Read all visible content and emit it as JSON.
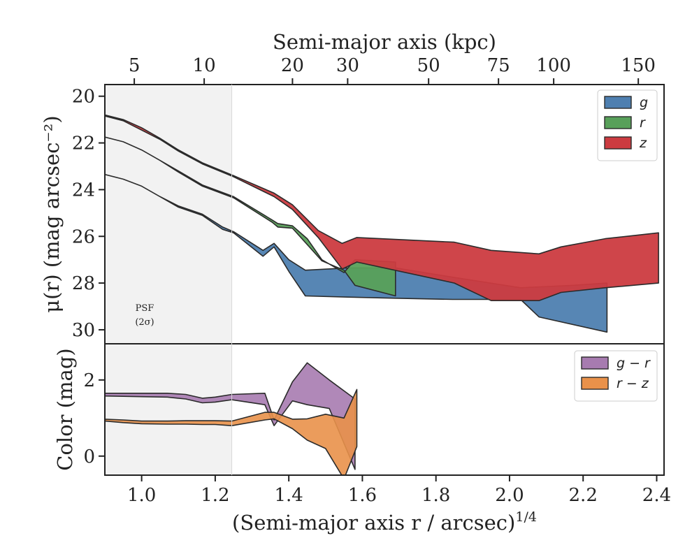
{
  "chart_data": [
    {
      "type": "area",
      "panel": "top",
      "top_axis": {
        "title": "Semi-major axis (kpc)",
        "tick_labels": [
          "5",
          "10",
          "20",
          "30",
          "50",
          "75",
          "100",
          "150"
        ],
        "tick_positions_x": [
          0.98,
          1.17,
          1.41,
          1.56,
          1.78,
          1.97,
          2.12,
          2.35
        ]
      },
      "ylabel": "μ(r) (mag arcsec⁻²)",
      "ylim": [
        30.6,
        19.5
      ],
      "xlim": [
        0.9,
        2.42
      ],
      "yticks": [
        20,
        22,
        24,
        26,
        28,
        30
      ],
      "psf_region": {
        "x": [
          0.9,
          1.245
        ],
        "label": [
          "PSF",
          "(2σ)"
        ]
      },
      "legend": {
        "placement": "top-right"
      },
      "series": [
        {
          "name": "g",
          "color": "#4e7fb0",
          "upper": [
            [
              0.9,
              23.35
            ],
            [
              0.95,
              23.55
            ],
            [
              1.0,
              23.85
            ],
            [
              1.05,
              24.3
            ],
            [
              1.1,
              24.7
            ],
            [
              1.165,
              25.05
            ],
            [
              1.22,
              25.6
            ],
            [
              1.25,
              25.8
            ],
            [
              1.33,
              26.6
            ],
            [
              1.36,
              26.3
            ],
            [
              1.4,
              27.0
            ],
            [
              1.445,
              27.45
            ],
            [
              1.56,
              27.35
            ],
            [
              1.69,
              27.35
            ],
            [
              1.845,
              27.75
            ],
            [
              2.03,
              28.2
            ],
            [
              2.17,
              28.1
            ],
            [
              2.265,
              28.0
            ]
          ],
          "lower": [
            [
              0.9,
              23.35
            ],
            [
              0.95,
              23.55
            ],
            [
              1.0,
              23.85
            ],
            [
              1.05,
              24.3
            ],
            [
              1.1,
              24.75
            ],
            [
              1.165,
              25.1
            ],
            [
              1.22,
              25.7
            ],
            [
              1.25,
              25.85
            ],
            [
              1.33,
              26.85
            ],
            [
              1.36,
              26.45
            ],
            [
              1.4,
              27.5
            ],
            [
              1.445,
              28.55
            ],
            [
              1.56,
              28.6
            ],
            [
              1.69,
              28.65
            ],
            [
              1.845,
              28.7
            ],
            [
              2.03,
              28.7
            ],
            [
              2.08,
              29.45
            ],
            [
              2.265,
              30.1
            ]
          ]
        },
        {
          "name": "r",
          "color": "#58a05a",
          "upper": [
            [
              0.9,
              21.75
            ],
            [
              0.95,
              21.95
            ],
            [
              1.0,
              22.3
            ],
            [
              1.05,
              22.75
            ],
            [
              1.1,
              23.2
            ],
            [
              1.165,
              23.8
            ],
            [
              1.25,
              24.3
            ],
            [
              1.355,
              25.3
            ],
            [
              1.37,
              25.45
            ],
            [
              1.41,
              25.55
            ],
            [
              1.45,
              26.1
            ],
            [
              1.49,
              27.0
            ],
            [
              1.55,
              27.55
            ],
            [
              1.58,
              27.0
            ],
            [
              1.69,
              27.1
            ]
          ],
          "lower": [
            [
              0.9,
              21.75
            ],
            [
              0.95,
              21.95
            ],
            [
              1.0,
              22.3
            ],
            [
              1.05,
              22.75
            ],
            [
              1.1,
              23.25
            ],
            [
              1.165,
              23.85
            ],
            [
              1.25,
              24.35
            ],
            [
              1.355,
              25.4
            ],
            [
              1.37,
              25.6
            ],
            [
              1.41,
              25.65
            ],
            [
              1.45,
              26.35
            ],
            [
              1.49,
              27.05
            ],
            [
              1.55,
              27.45
            ],
            [
              1.58,
              28.1
            ],
            [
              1.69,
              28.55
            ]
          ]
        },
        {
          "name": "z",
          "color": "#cc3b40",
          "upper": [
            [
              0.9,
              20.8
            ],
            [
              0.95,
              21.0
            ],
            [
              1.0,
              21.35
            ],
            [
              1.05,
              21.8
            ],
            [
              1.1,
              22.3
            ],
            [
              1.165,
              22.85
            ],
            [
              1.25,
              23.4
            ],
            [
              1.36,
              24.15
            ],
            [
              1.41,
              24.65
            ],
            [
              1.48,
              25.75
            ],
            [
              1.545,
              26.3
            ],
            [
              1.585,
              26.05
            ],
            [
              1.85,
              26.25
            ],
            [
              1.95,
              26.6
            ],
            [
              2.08,
              26.75
            ],
            [
              2.14,
              26.45
            ],
            [
              2.26,
              26.1
            ],
            [
              2.405,
              25.85
            ]
          ],
          "lower": [
            [
              0.9,
              20.85
            ],
            [
              0.95,
              21.05
            ],
            [
              1.0,
              21.45
            ],
            [
              1.05,
              21.85
            ],
            [
              1.1,
              22.35
            ],
            [
              1.165,
              22.9
            ],
            [
              1.25,
              23.45
            ],
            [
              1.36,
              24.3
            ],
            [
              1.41,
              24.85
            ],
            [
              1.48,
              26.05
            ],
            [
              1.545,
              27.4
            ],
            [
              1.585,
              27.1
            ],
            [
              1.85,
              28.0
            ],
            [
              1.95,
              28.75
            ],
            [
              2.08,
              28.75
            ],
            [
              2.14,
              28.4
            ],
            [
              2.26,
              28.2
            ],
            [
              2.405,
              28.0
            ]
          ]
        }
      ]
    },
    {
      "type": "area",
      "panel": "bottom",
      "xlabel": "(Semi-major axis r / arcsec)¹ᐟ⁴",
      "xlabel_display": "(Semi-major axis r / arcsec)^1/4",
      "ylabel": "Color (mag)",
      "ylim": [
        -0.5,
        2.95
      ],
      "xlim": [
        0.9,
        2.42
      ],
      "xticks": [
        1.0,
        1.2,
        1.4,
        1.6,
        1.8,
        2.0,
        2.2,
        2.4
      ],
      "yticks": [
        0,
        2
      ],
      "legend": {
        "placement": "top-right"
      },
      "series": [
        {
          "name": "g − r",
          "color": "#a77bb0",
          "upper": [
            [
              0.9,
              1.65
            ],
            [
              0.95,
              1.65
            ],
            [
              1.0,
              1.65
            ],
            [
              1.07,
              1.65
            ],
            [
              1.12,
              1.62
            ],
            [
              1.165,
              1.52
            ],
            [
              1.2,
              1.55
            ],
            [
              1.245,
              1.62
            ],
            [
              1.335,
              1.65
            ],
            [
              1.36,
              0.95
            ],
            [
              1.41,
              1.95
            ],
            [
              1.45,
              2.45
            ],
            [
              1.51,
              2.0
            ],
            [
              1.58,
              1.5
            ]
          ],
          "lower": [
            [
              0.9,
              1.58
            ],
            [
              0.95,
              1.57
            ],
            [
              1.0,
              1.56
            ],
            [
              1.07,
              1.55
            ],
            [
              1.12,
              1.5
            ],
            [
              1.165,
              1.4
            ],
            [
              1.2,
              1.42
            ],
            [
              1.245,
              1.48
            ],
            [
              1.335,
              1.35
            ],
            [
              1.36,
              0.8
            ],
            [
              1.41,
              1.45
            ],
            [
              1.45,
              1.35
            ],
            [
              1.51,
              1.25
            ],
            [
              1.58,
              -0.35
            ]
          ]
        },
        {
          "name": "r − z",
          "color": "#e9914a",
          "upper": [
            [
              0.9,
              0.97
            ],
            [
              0.95,
              0.95
            ],
            [
              1.0,
              0.92
            ],
            [
              1.07,
              0.92
            ],
            [
              1.12,
              0.93
            ],
            [
              1.165,
              0.93
            ],
            [
              1.2,
              0.93
            ],
            [
              1.245,
              0.92
            ],
            [
              1.335,
              1.15
            ],
            [
              1.36,
              1.15
            ],
            [
              1.41,
              0.97
            ],
            [
              1.45,
              0.98
            ],
            [
              1.5,
              1.1
            ],
            [
              1.55,
              1.0
            ],
            [
              1.585,
              1.75
            ]
          ],
          "lower": [
            [
              0.9,
              0.92
            ],
            [
              0.95,
              0.88
            ],
            [
              1.0,
              0.85
            ],
            [
              1.07,
              0.84
            ],
            [
              1.12,
              0.84
            ],
            [
              1.165,
              0.83
            ],
            [
              1.2,
              0.83
            ],
            [
              1.245,
              0.8
            ],
            [
              1.335,
              0.95
            ],
            [
              1.36,
              0.98
            ],
            [
              1.41,
              0.72
            ],
            [
              1.45,
              0.42
            ],
            [
              1.5,
              0.2
            ],
            [
              1.55,
              -0.6
            ],
            [
              1.585,
              0.25
            ]
          ]
        }
      ]
    }
  ]
}
